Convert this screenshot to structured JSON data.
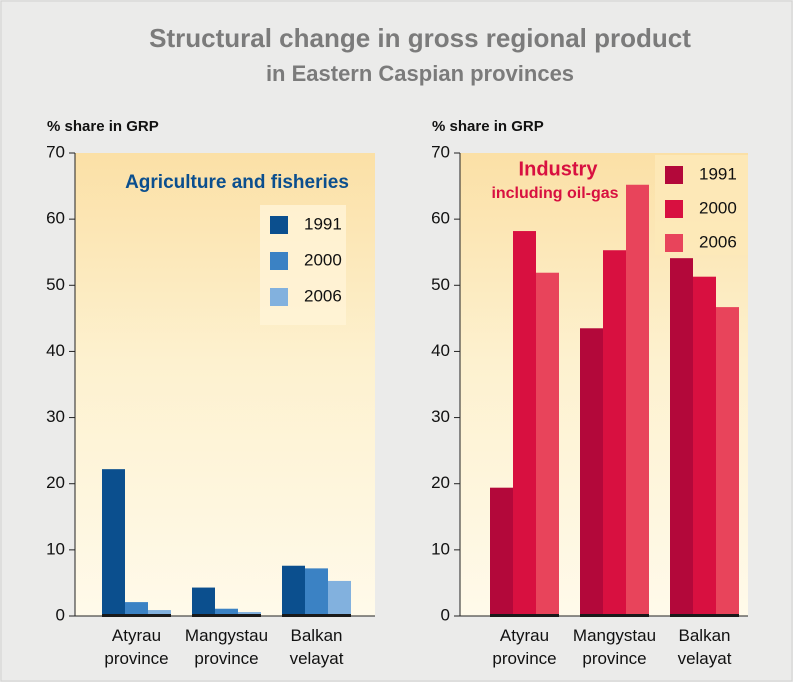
{
  "title": "Structural change in gross regional product",
  "subtitle": "in Eastern Caspian provinces",
  "chart_data": [
    {
      "type": "bar",
      "title": "Agriculture and fisheries",
      "y_label": "% share in GRP",
      "categories": [
        "Atyrau\nprovince",
        "Mangystau\nprovince",
        "Balkan\nvelayat"
      ],
      "series": [
        {
          "name": "1991",
          "color": "#0b4f8e",
          "values": [
            22.2,
            4.3,
            7.6
          ]
        },
        {
          "name": "2000",
          "color": "#3b82c4",
          "values": [
            2.1,
            1.1,
            7.2
          ]
        },
        {
          "name": "2006",
          "color": "#82b1de",
          "values": [
            0.9,
            0.6,
            5.3
          ]
        }
      ],
      "ylim": [
        0,
        70
      ],
      "yticks": [
        0,
        10,
        20,
        30,
        40,
        50,
        60,
        70
      ]
    },
    {
      "type": "bar",
      "title": "Industry",
      "subtitle": "including oil-gas",
      "y_label": "% share in GRP",
      "categories": [
        "Atyrau\nprovince",
        "Mangystau\nprovince",
        "Balkan\nvelayat"
      ],
      "series": [
        {
          "name": "1991",
          "color": "#b3083a",
          "values": [
            19.4,
            43.5,
            54.1
          ]
        },
        {
          "name": "2000",
          "color": "#d81040",
          "values": [
            58.2,
            55.3,
            51.3
          ]
        },
        {
          "name": "2006",
          "color": "#e8445b",
          "values": [
            51.9,
            65.2,
            46.7
          ]
        }
      ],
      "ylim": [
        0,
        70
      ],
      "yticks": [
        0,
        10,
        20,
        30,
        40,
        50,
        60,
        70
      ]
    }
  ]
}
